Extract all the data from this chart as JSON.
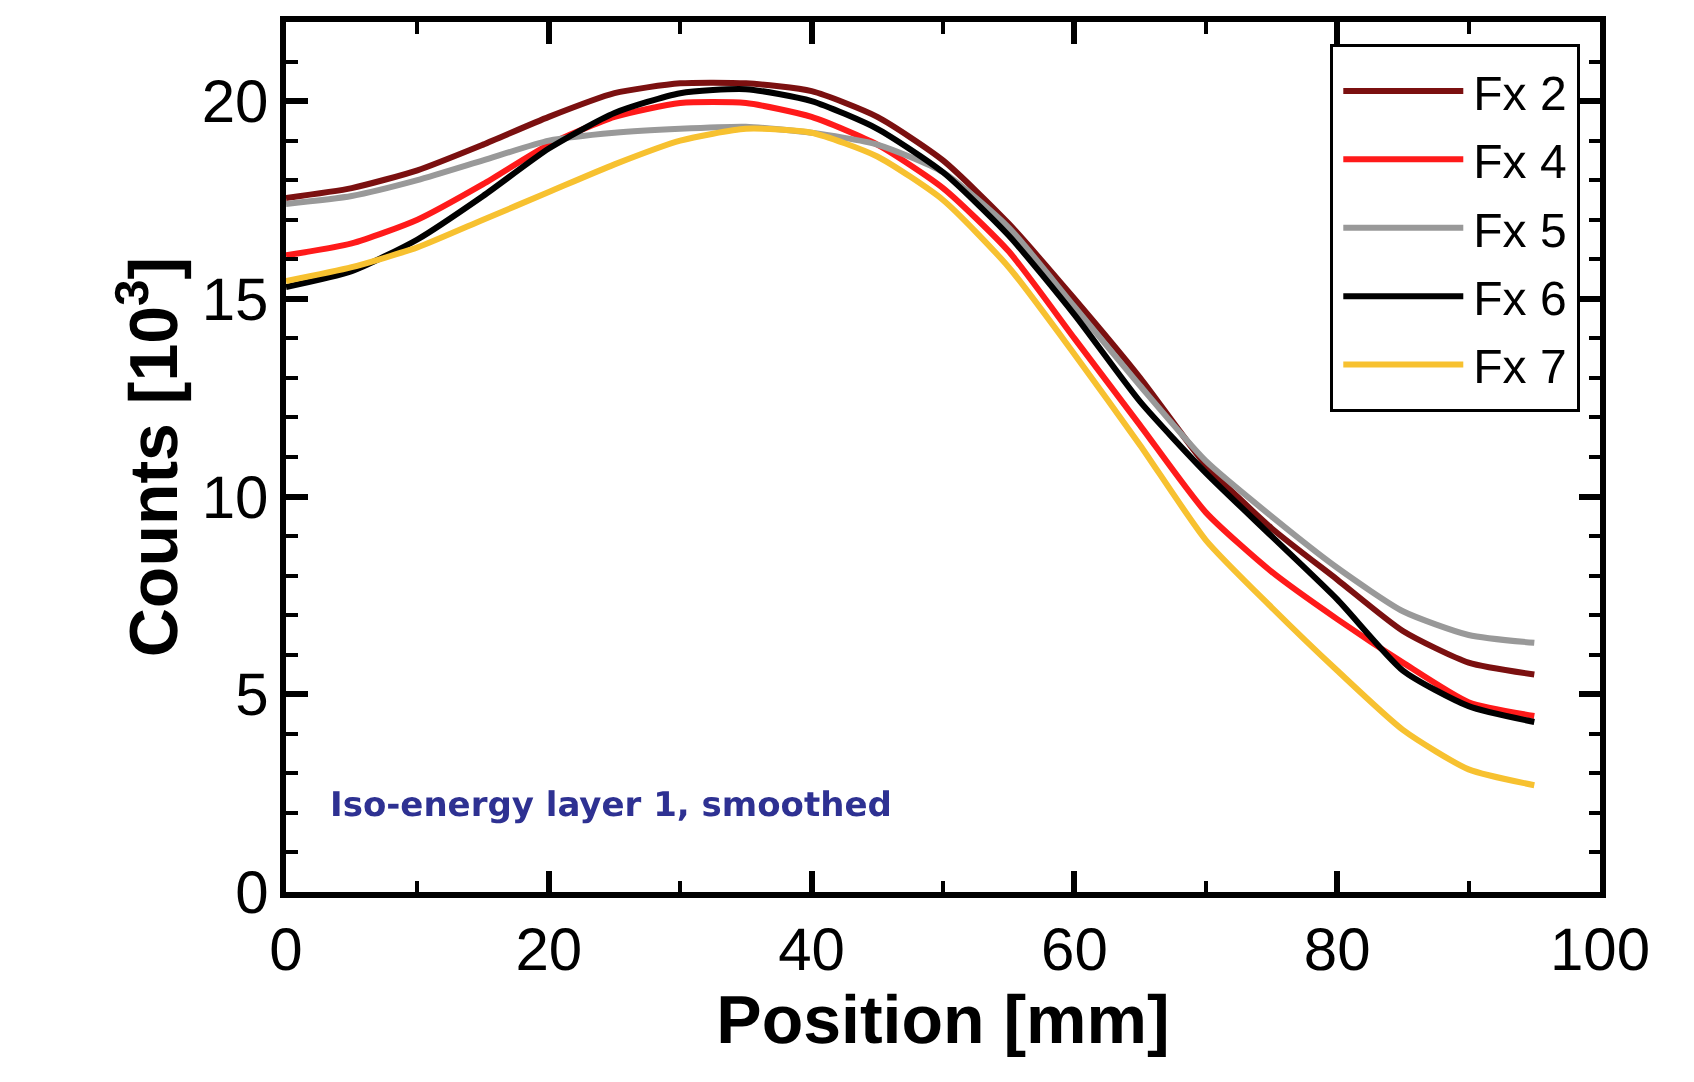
{
  "chart_data": {
    "type": "line",
    "xlabel": "Position [mm]",
    "ylabel": "Counts [10$^{3}$]",
    "x": [
      0,
      5,
      10,
      15,
      20,
      25,
      30,
      35,
      40,
      45,
      50,
      55,
      60,
      65,
      70,
      75,
      80,
      85,
      90,
      95
    ],
    "series": [
      {
        "name": "Fx 2",
        "color": "#7b1010",
        "values": [
          17.55,
          17.8,
          18.25,
          18.9,
          19.6,
          20.2,
          20.45,
          20.45,
          20.25,
          19.6,
          18.5,
          16.9,
          15.0,
          13.0,
          10.8,
          9.2,
          7.9,
          6.6,
          5.8,
          5.5
        ]
      },
      {
        "name": "Fx 4",
        "color": "#ff1a1a",
        "values": [
          16.1,
          16.4,
          17.0,
          17.9,
          18.9,
          19.6,
          19.95,
          19.95,
          19.6,
          18.9,
          17.8,
          16.2,
          14.0,
          11.8,
          9.6,
          8.1,
          6.9,
          5.8,
          4.8,
          4.45
        ]
      },
      {
        "name": "Fx 5",
        "color": "#999999",
        "values": [
          17.4,
          17.6,
          18.0,
          18.5,
          19.0,
          19.2,
          19.3,
          19.35,
          19.2,
          18.9,
          18.2,
          16.8,
          14.8,
          12.8,
          10.9,
          9.5,
          8.2,
          7.1,
          6.5,
          6.3
        ]
      },
      {
        "name": "Fx 6",
        "color": "#000000",
        "values": [
          15.3,
          15.7,
          16.5,
          17.6,
          18.8,
          19.7,
          20.2,
          20.3,
          20.0,
          19.3,
          18.2,
          16.6,
          14.6,
          12.4,
          10.6,
          9.0,
          7.4,
          5.6,
          4.7,
          4.3
        ]
      },
      {
        "name": "Fx 7",
        "color": "#f7c130",
        "values": [
          15.45,
          15.8,
          16.3,
          17.0,
          17.7,
          18.4,
          19.0,
          19.3,
          19.2,
          18.6,
          17.5,
          15.8,
          13.6,
          11.3,
          8.9,
          7.2,
          5.6,
          4.1,
          3.1,
          2.7
        ]
      }
    ],
    "xlim": [
      0,
      100
    ],
    "xticks": [
      0,
      20,
      40,
      60,
      80,
      100
    ],
    "ylim": [
      0,
      22
    ],
    "yticks": [
      0,
      5,
      10,
      15,
      20
    ],
    "legend": "top right",
    "grid": false,
    "marker": "none",
    "line_style": "solid",
    "annotations": [
      "Iso-energy layer 1, smoothed"
    ]
  }
}
